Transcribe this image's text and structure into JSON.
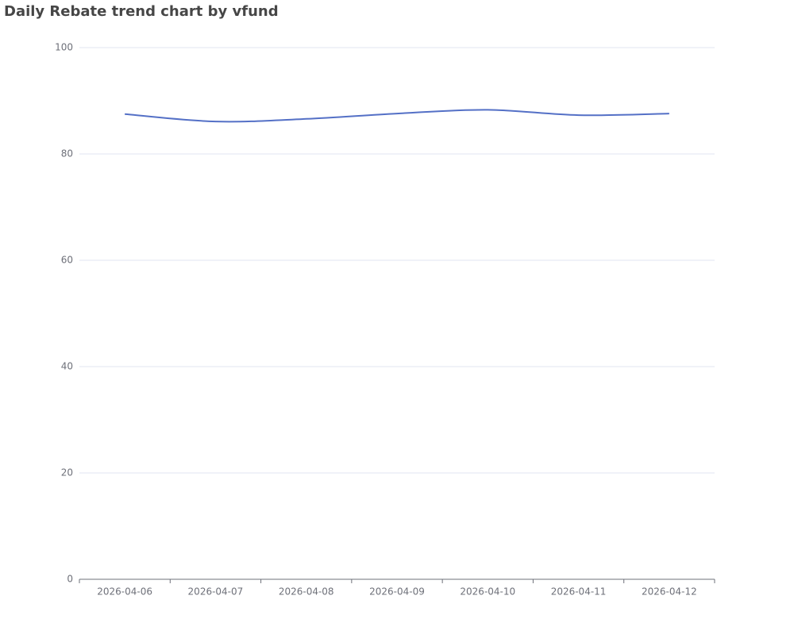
{
  "chart_data": {
    "type": "line",
    "title": "Daily Rebate trend chart by vfund",
    "categories": [
      "2026-04-06",
      "2026-04-07",
      "2026-04-08",
      "2026-04-09",
      "2026-04-10",
      "2026-04-11",
      "2026-04-12"
    ],
    "series": [
      {
        "name": "vfund",
        "color": "#5470c6",
        "values": [
          87.5,
          86.1,
          86.6,
          87.6,
          88.3,
          87.3,
          87.6
        ]
      }
    ],
    "ylim": [
      0,
      100
    ],
    "yticks": [
      0,
      20,
      40,
      60,
      80,
      100
    ],
    "grid": true,
    "smooth": true
  }
}
